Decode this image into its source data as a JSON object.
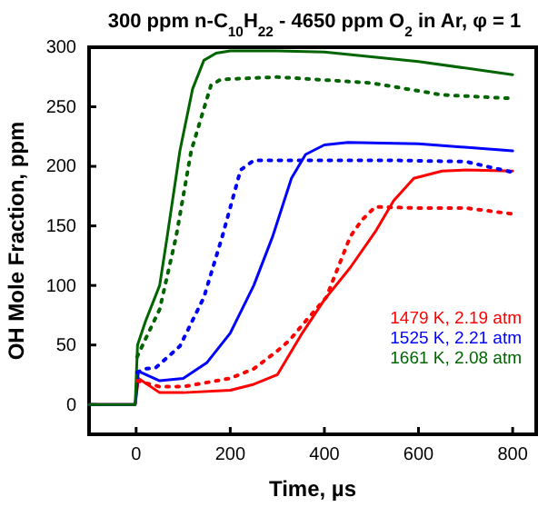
{
  "chart_data": {
    "type": "line",
    "title": "300 ppm n-C$_{10}$H$_{22}$ -  4650 ppm O$_{2}$ in Ar, φ = 1",
    "xlabel": "Time, µs",
    "ylabel": "OH Mole Fraction, ppm",
    "xlim": [
      -100,
      850
    ],
    "ylim": [
      -25,
      300
    ],
    "xticks": [
      0,
      200,
      400,
      600,
      800
    ],
    "yticks": [
      0,
      50,
      100,
      150,
      200,
      250,
      300
    ],
    "grid": false,
    "legend": "bottom right",
    "series": [
      {
        "name": "1479 K, 2.19 atm",
        "color": "#ff0000",
        "line_style": "solid",
        "x": [
          -100,
          -50,
          -2,
          5,
          50,
          100,
          200,
          250,
          300,
          353,
          400,
          455,
          508,
          547,
          590,
          650,
          700,
          800
        ],
        "values": [
          0,
          0,
          0,
          22,
          10,
          10,
          12,
          17,
          25,
          60,
          88,
          115,
          145,
          171,
          190,
          196,
          197,
          196
        ]
      },
      {
        "name": "1525 K, 2.21 atm",
        "color": "#0000ff",
        "line_style": "solid",
        "x": [
          -100,
          -50,
          -2,
          5,
          50,
          100,
          150,
          200,
          250,
          290,
          330,
          360,
          400,
          450,
          600,
          800
        ],
        "values": [
          0,
          0,
          0,
          28,
          20,
          22,
          35,
          60,
          100,
          141,
          190,
          210,
          218,
          220,
          219,
          213
        ]
      },
      {
        "name": "1661 K, 2.08 atm",
        "color": "#006400",
        "line_style": "solid",
        "x": [
          -100,
          -50,
          -2,
          3,
          20,
          50,
          66,
          93,
          120,
          144,
          170,
          200,
          300,
          400,
          600,
          800
        ],
        "values": [
          0,
          0,
          0,
          50,
          70,
          100,
          141,
          213,
          265,
          289,
          295,
          297,
          297,
          296,
          288,
          277
        ]
      },
      {
        "x": [
          2,
          50,
          100,
          200,
          250,
          300,
          326,
          360,
          404,
          455,
          480,
          508,
          600,
          700,
          800
        ],
        "color": "#ff0000",
        "line_style": "dotted",
        "values": [
          20,
          15,
          15,
          22,
          30,
          45,
          54,
          70,
          90,
          141,
          155,
          166,
          165,
          165,
          160
        ]
      },
      {
        "x": [
          2,
          20,
          42,
          93,
          144,
          183,
          222,
          250,
          400,
          550,
          700,
          800
        ],
        "color": "#0000ff",
        "line_style": "dotted",
        "values": [
          27,
          30,
          31,
          49,
          90,
          141,
          197,
          205,
          205,
          205,
          204,
          195
        ]
      },
      {
        "x": [
          2,
          50,
          85,
          117,
          159,
          180,
          300,
          500,
          650,
          800
        ],
        "color": "#006400",
        "line_style": "dotted",
        "values": [
          40,
          80,
          141,
          213,
          268,
          273,
          275,
          270,
          260,
          257
        ]
      }
    ]
  }
}
